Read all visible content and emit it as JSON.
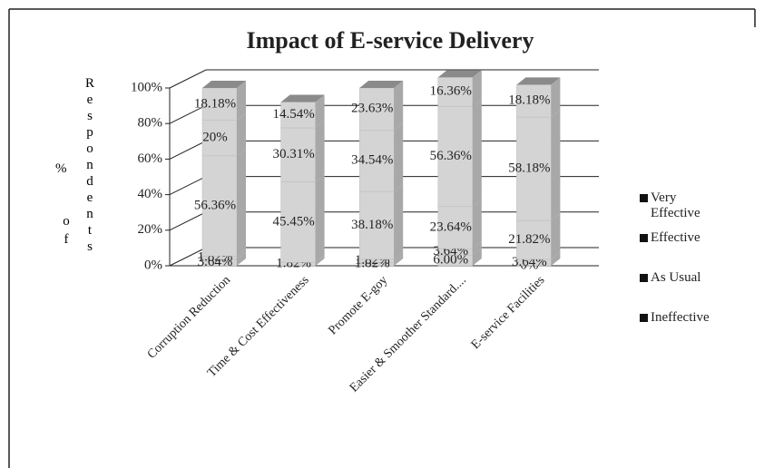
{
  "chart_data": {
    "type": "bar3d_stacked",
    "title": "Impact of E-service Delivery",
    "y_label_parts": [
      "%",
      "of",
      "Respondents"
    ],
    "categories": [
      "Corruption Reduction",
      "Time & Cost Effectiveness",
      "Promote E-goy",
      "Easier & Smoother Standard....",
      "E-service Facilities"
    ],
    "ylim": [
      0,
      100
    ],
    "yticks": [
      {
        "value": 0,
        "label": "0%"
      },
      {
        "value": 20,
        "label": "20%"
      },
      {
        "value": 40,
        "label": "40%"
      },
      {
        "value": 60,
        "label": "60%"
      },
      {
        "value": 80,
        "label": "80%"
      },
      {
        "value": 100,
        "label": "100%"
      }
    ],
    "grid": true,
    "legend": "right",
    "color": "#d4d4d4",
    "series": [
      {
        "values": [
          3.64,
          null,
          1.82,
          6.0,
          0
        ],
        "value_labels": [
          "3.64%",
          null,
          "1.82%",
          "6.00%",
          "0%"
        ]
      },
      {
        "name": "Ineffective",
        "values": [
          1.82,
          1.82,
          1.82,
          3.64,
          3.64
        ],
        "value_labels": [
          "1.82%",
          "1.82%",
          "1.82%",
          "3.64%",
          "3.64%"
        ]
      },
      {
        "name": "As Usual",
        "values": [
          56.36,
          45.45,
          38.18,
          23.64,
          21.82
        ],
        "value_labels": [
          "56.36%",
          "45.45%",
          "38.18%",
          "23.64%",
          "21.82%"
        ]
      },
      {
        "name": "Effective",
        "values": [
          20,
          30.31,
          34.54,
          56.36,
          58.18
        ],
        "value_labels": [
          "20%",
          "30.31%",
          "34.54%",
          "56.36%",
          "58.18%"
        ]
      },
      {
        "name": "Very Effective",
        "values": [
          18.18,
          14.54,
          23.63,
          16.36,
          18.18
        ],
        "value_labels": [
          "18.18%",
          "14.54%",
          "23.63%",
          "16.36%",
          "18.18%"
        ]
      }
    ]
  }
}
